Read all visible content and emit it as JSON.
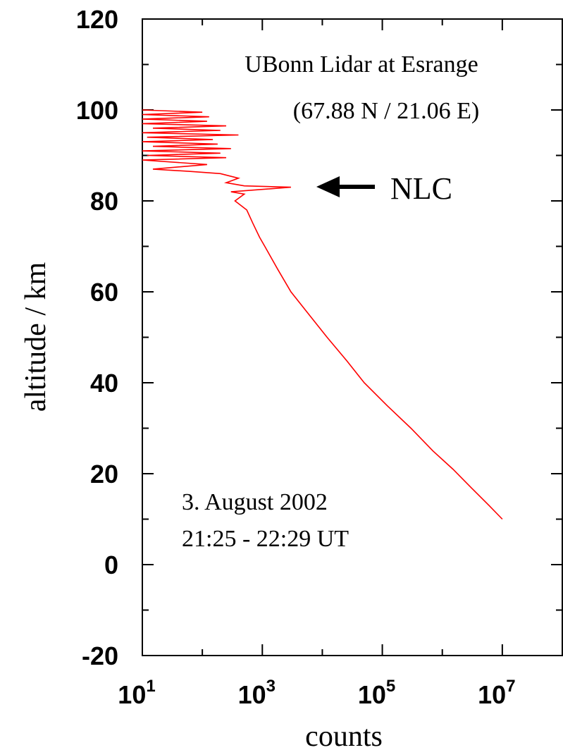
{
  "chart_data": {
    "type": "line",
    "title": "",
    "xlabel": "counts",
    "ylabel": "altitude / km",
    "x_scale": "log",
    "xlim": [
      10,
      100000000
    ],
    "ylim": [
      -20,
      120
    ],
    "x_ticks": [
      {
        "base": "10",
        "exp": "1",
        "value": 10
      },
      {
        "base": "10",
        "exp": "3",
        "value": 1000
      },
      {
        "base": "10",
        "exp": "5",
        "value": 100000
      },
      {
        "base": "10",
        "exp": "7",
        "value": 10000000
      }
    ],
    "y_ticks": [
      "120",
      "100",
      "80",
      "60",
      "40",
      "20",
      "0",
      "-20"
    ],
    "y_tick_values": [
      120,
      100,
      80,
      60,
      40,
      20,
      0,
      -20
    ],
    "annotations": {
      "location_line1": "UBonn Lidar at Esrange",
      "location_line2": "(67.88 N / 21.06 E)",
      "date_line1": "3. August 2002",
      "date_line2": "21:25 - 22:29 UT",
      "nlc_label": "NLC"
    },
    "series": [
      {
        "color": "#ff0000",
        "points": [
          [
            10000000,
            10
          ],
          [
            6000000,
            13
          ],
          [
            3000000,
            17
          ],
          [
            1500000,
            21
          ],
          [
            700000,
            25
          ],
          [
            300000,
            30
          ],
          [
            120000,
            35
          ],
          [
            50000,
            40
          ],
          [
            25000,
            45
          ],
          [
            12000,
            50
          ],
          [
            6000,
            55
          ],
          [
            3000,
            60
          ],
          [
            1800,
            65
          ],
          [
            1100,
            70
          ],
          [
            900,
            72
          ],
          [
            700,
            75
          ],
          [
            550,
            78
          ],
          [
            350,
            80
          ],
          [
            500,
            81.5
          ],
          [
            300,
            82
          ],
          [
            3000,
            83
          ],
          [
            500,
            83.3
          ],
          [
            250,
            84
          ],
          [
            400,
            85
          ],
          [
            200,
            86
          ],
          [
            60,
            86.5
          ],
          [
            15,
            87
          ],
          [
            120,
            88
          ],
          [
            10,
            89
          ],
          [
            250,
            89.5
          ],
          [
            12,
            90
          ],
          [
            200,
            90.5
          ],
          [
            10,
            91
          ],
          [
            300,
            91.5
          ],
          [
            15,
            92
          ],
          [
            180,
            92.5
          ],
          [
            10,
            93
          ],
          [
            150,
            93.5
          ],
          [
            12,
            94
          ],
          [
            400,
            94.5
          ],
          [
            10,
            95
          ],
          [
            200,
            95.5
          ],
          [
            15,
            96
          ],
          [
            250,
            96.5
          ],
          [
            10,
            97
          ],
          [
            120,
            97.5
          ],
          [
            10,
            98
          ],
          [
            130,
            98.5
          ],
          [
            10,
            99
          ],
          [
            100,
            99.5
          ],
          [
            10,
            100
          ]
        ]
      }
    ],
    "grid": false
  }
}
